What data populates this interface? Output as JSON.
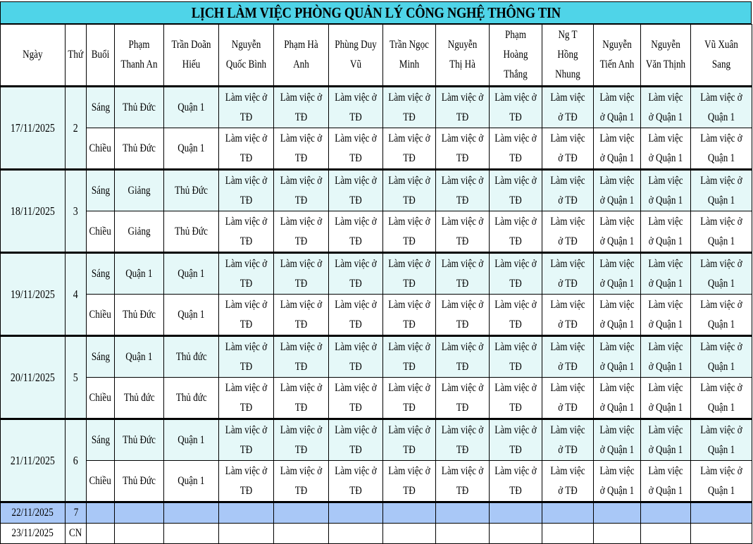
{
  "title": "LỊCH LÀM VIỆC PHÒNG QUẢN LÝ CÔNG NGHỆ THÔNG TIN",
  "headers": {
    "ngay": "Ngày",
    "thu": "Thứ",
    "buoi": "Buổi",
    "people": [
      "Phạm Thanh An",
      "Trần Doãn Hiếu",
      "Nguyễn Quốc Bình",
      "Phạm Hà Anh",
      "Phùng Duy Vũ",
      "Trần Ngọc Minh",
      "Nguyễn Thị Hà",
      "Phạm Hoàng Thắng",
      "Ng T Hồng Nhung",
      "Nguyễn Tiến Anh",
      "Nguyễn Văn Thịnh",
      "Vũ Xuân Sang"
    ]
  },
  "session_labels": {
    "morning": "Sáng",
    "afternoon": "Chiều"
  },
  "days": [
    {
      "date": "17/11/2025",
      "thu": "2",
      "morning": [
        "Thủ Đức",
        "Quận 1",
        "Làm việc ở TĐ",
        "Làm việc ở TĐ",
        "Làm việc ở TĐ",
        "Làm việc ở TĐ",
        "Làm việc ở TĐ",
        "Làm việc ở TĐ",
        "Làm việc ở TĐ",
        "Làm việc ở Quận 1",
        "Làm việc ở Quận 1",
        "Làm việc ở Quận 1"
      ],
      "afternoon": [
        "Thủ Đức",
        "Quận 1",
        "Làm việc ở TĐ",
        "Làm việc ở TĐ",
        "Làm việc ở TĐ",
        "Làm việc ở TĐ",
        "Làm việc ở TĐ",
        "Làm việc ở TĐ",
        "Làm việc ở TĐ",
        "Làm việc ở Quận 1",
        "Làm việc ở Quận 1",
        "Làm việc ở Quận 1"
      ]
    },
    {
      "date": "18/11/2025",
      "thu": "3",
      "morning": [
        "Giảng",
        "Thủ Đức",
        "Làm việc ở TĐ",
        "Làm việc ở TĐ",
        "Làm việc ở TĐ",
        "Làm việc ở TĐ",
        "Làm việc ở TĐ",
        "Làm việc ở TĐ",
        "Làm việc ở TĐ",
        "Làm việc ở Quận 1",
        "Làm việc ở Quận 1",
        "Làm việc ở Quận 1"
      ],
      "afternoon": [
        "Giảng",
        "Thủ Đức",
        "Làm việc ở TĐ",
        "Làm việc ở TĐ",
        "Làm việc ở TĐ",
        "Làm việc ở TĐ",
        "Làm việc ở TĐ",
        "Làm việc ở TĐ",
        "Làm việc ở TĐ",
        "Làm việc ở Quận 1",
        "Làm việc ở Quận 1",
        "Làm việc ở Quận 1"
      ]
    },
    {
      "date": "19/11/2025",
      "thu": "4",
      "morning": [
        "Quận 1",
        "Quận 1",
        "Làm việc ở TĐ",
        "Làm việc ở TĐ",
        "Làm việc ở TĐ",
        "Làm việc ở TĐ",
        "Làm việc ở TĐ",
        "Làm việc ở TĐ",
        "Làm việc ở TĐ",
        "Làm việc ở Quận 1",
        "Làm việc ở Quận 1",
        "Làm việc ở Quận 1"
      ],
      "afternoon": [
        "Thủ Đức",
        "Quận 1",
        "Làm việc ở TĐ",
        "Làm việc ở TĐ",
        "Làm việc ở TĐ",
        "Làm việc ở TĐ",
        "Làm việc ở TĐ",
        "Làm việc ở TĐ",
        "Làm việc ở TĐ",
        "Làm việc ở Quận 1",
        "Làm việc ở Quận 1",
        "Làm việc ở Quận 1"
      ]
    },
    {
      "date": "20/11/2025",
      "thu": "5",
      "morning": [
        "Quận 1",
        "Thủ đức",
        "Làm việc ở TĐ",
        "Làm việc ở TĐ",
        "Làm việc ở TĐ",
        "Làm việc ở TĐ",
        "Làm việc ở TĐ",
        "Làm việc ở TĐ",
        "Làm việc ở TĐ",
        "Làm việc ở Quận 1",
        "Làm việc ở Quận 1",
        "Làm việc ở Quận 1"
      ],
      "afternoon": [
        "Thủ đức",
        "Thủ đức",
        "Làm việc ở TĐ",
        "Làm việc ở TĐ",
        "Làm việc ở TĐ",
        "Làm việc ở TĐ",
        "Làm việc ở TĐ",
        "Làm việc ở TĐ",
        "Làm việc ở TĐ",
        "Làm việc ở Quận 1",
        "Làm việc ở Quận 1",
        "Làm việc ở Quận 1"
      ]
    },
    {
      "date": "21/11/2025",
      "thu": "6",
      "morning": [
        "Thủ Đức",
        "Quận 1",
        "Làm việc ở TĐ",
        "Làm việc ở TĐ",
        "Làm việc ở TĐ",
        "Làm việc ở TĐ",
        "Làm việc ở TĐ",
        "Làm việc ở TĐ",
        "Làm việc ở TĐ",
        "Làm việc ở Quận 1",
        "Làm việc ở Quận 1",
        "Làm việc ở Quận 1"
      ],
      "afternoon": [
        "Thủ Đức",
        "Quận 1",
        "Làm việc ở TĐ",
        "Làm việc ở TĐ",
        "Làm việc ở TĐ",
        "Làm việc ở TĐ",
        "Làm việc ở TĐ",
        "Làm việc ở TĐ",
        "Làm việc ở TĐ",
        "Làm việc ở Quận 1",
        "Làm việc ở Quận 1",
        "Làm việc ở Quận 1"
      ]
    }
  ],
  "weekend": [
    {
      "date": "22/11/2025",
      "thu": "7"
    },
    {
      "date": "23/11/2025",
      "thu": "CN"
    }
  ],
  "colors": {
    "title_bg": "#4fd4e8",
    "row_highlight": "#e5f8f8",
    "saturday_bg": "#a9c8f7"
  }
}
